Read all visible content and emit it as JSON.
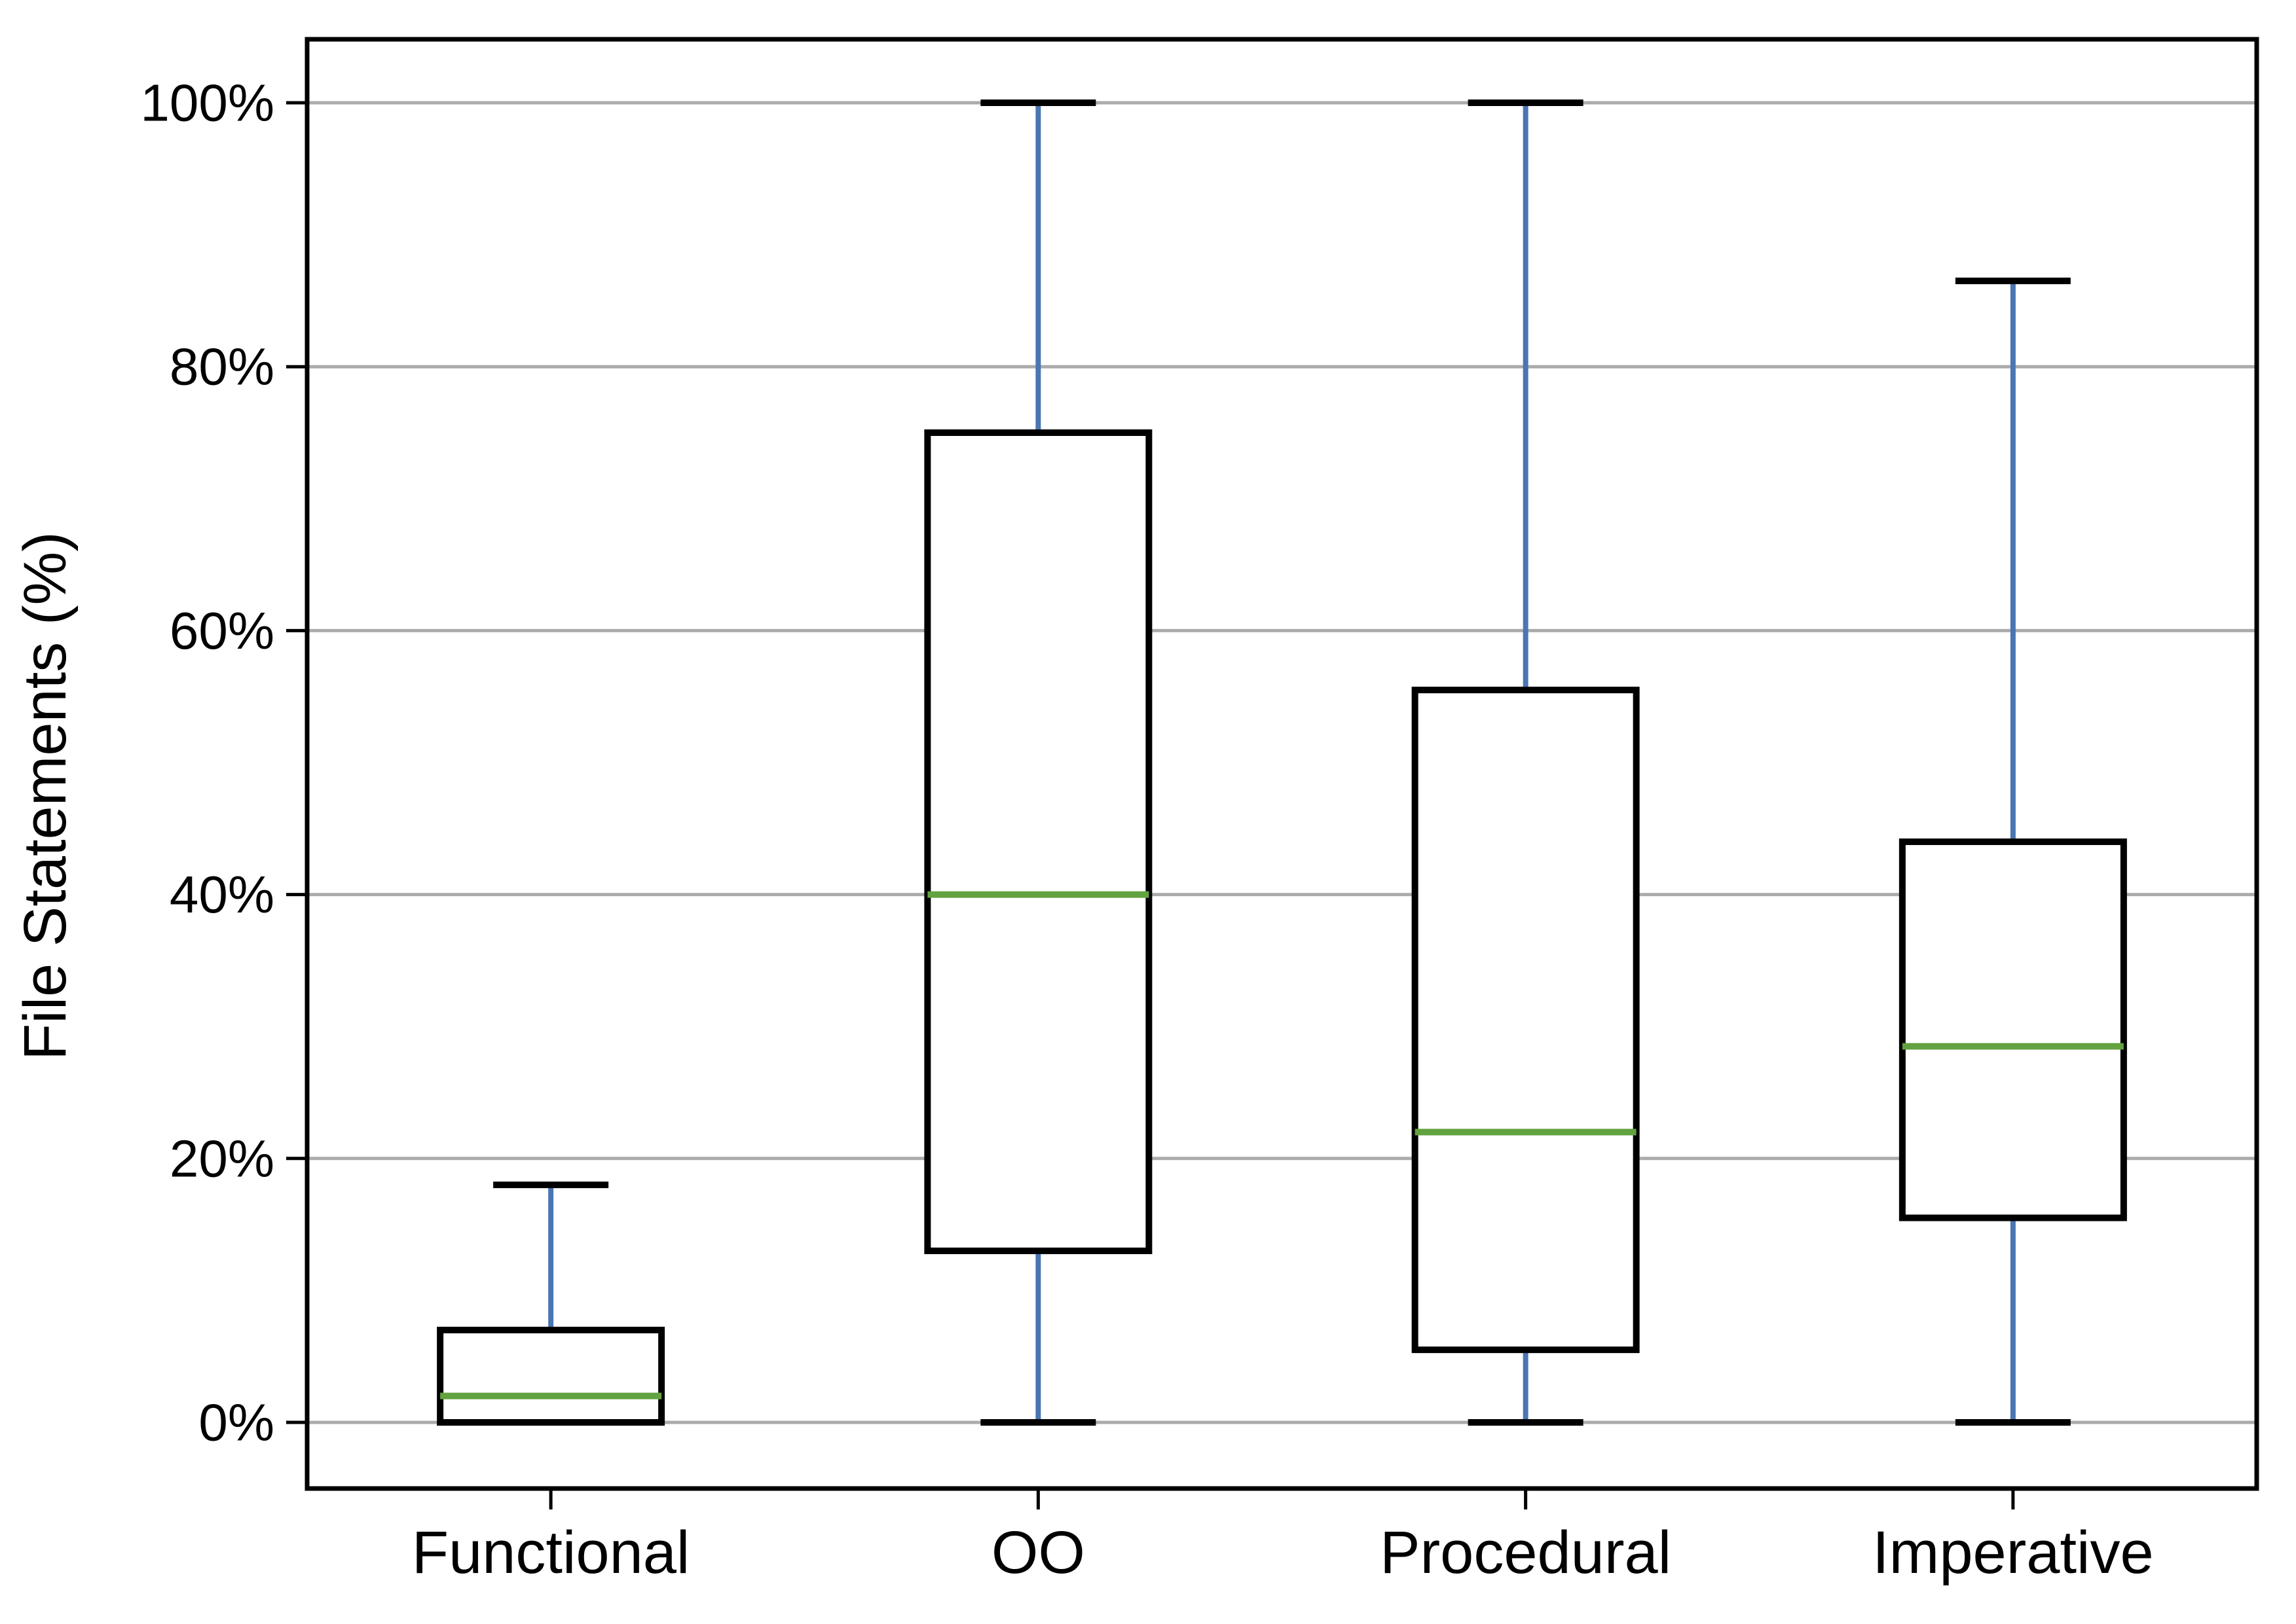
{
  "figure": {
    "background": "#ffffff"
  },
  "chart_data": {
    "type": "boxplot",
    "title": "",
    "xlabel": "",
    "ylabel": "File Statements (%)",
    "categories": [
      "Functional",
      "OO",
      "Procedural",
      "Imperative"
    ],
    "series": [
      {
        "name": "Functional",
        "whislo": 0,
        "q1": 0,
        "med": 2,
        "q3": 7,
        "whishi": 18
      },
      {
        "name": "OO",
        "whislo": 0,
        "q1": 13,
        "med": 40,
        "q3": 75,
        "whishi": 100
      },
      {
        "name": "Procedural",
        "whislo": 0,
        "q1": 5.5,
        "med": 22,
        "q3": 55.5,
        "whishi": 100
      },
      {
        "name": "Imperative",
        "whislo": 0,
        "q1": 15.5,
        "med": 28.5,
        "q3": 44,
        "whishi": 86.5
      }
    ],
    "yticks": [
      {
        "value": 0,
        "label": "0%"
      },
      {
        "value": 20,
        "label": "20%"
      },
      {
        "value": 40,
        "label": "40%"
      },
      {
        "value": 60,
        "label": "60%"
      },
      {
        "value": 80,
        "label": "80%"
      },
      {
        "value": 100,
        "label": "100%"
      }
    ],
    "ylim": [
      -5,
      105
    ],
    "grid": true,
    "legend": "none",
    "colors": {
      "whisker": "#4A76B2",
      "median": "#62A23F",
      "box_edge": "#000000",
      "box_fill": "#ffffff",
      "cap": "#000000",
      "grid": "#ABABAB",
      "frame": "#000000",
      "text": "#000000"
    }
  }
}
